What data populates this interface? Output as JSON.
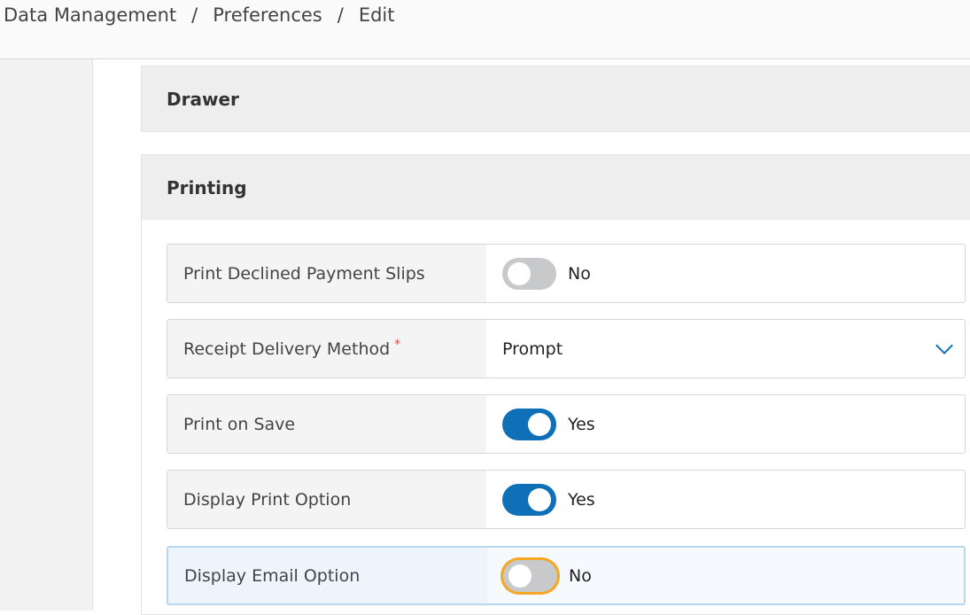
{
  "breadcrumb": [
    "Data Management",
    "Preferences",
    "Edit"
  ],
  "sections": {
    "drawer": "Drawer",
    "printing": "Printing"
  },
  "rows": [
    {
      "label": "Print Declined Payment Slips",
      "type": "toggle",
      "on": false,
      "value": "No"
    },
    {
      "label": "Receipt Delivery Method",
      "type": "select",
      "required": "*",
      "value": "Prompt"
    },
    {
      "label": "Print on Save",
      "type": "toggle",
      "on": true,
      "value": "Yes"
    },
    {
      "label": "Display Print Option",
      "type": "toggle",
      "on": true,
      "value": "Yes"
    },
    {
      "label": "Display Email Option",
      "type": "toggle",
      "on": false,
      "value": "No",
      "focused": true
    }
  ],
  "colors": {
    "accent": "#0f70b7",
    "focus": "#f5a623",
    "required": "#e04848"
  }
}
